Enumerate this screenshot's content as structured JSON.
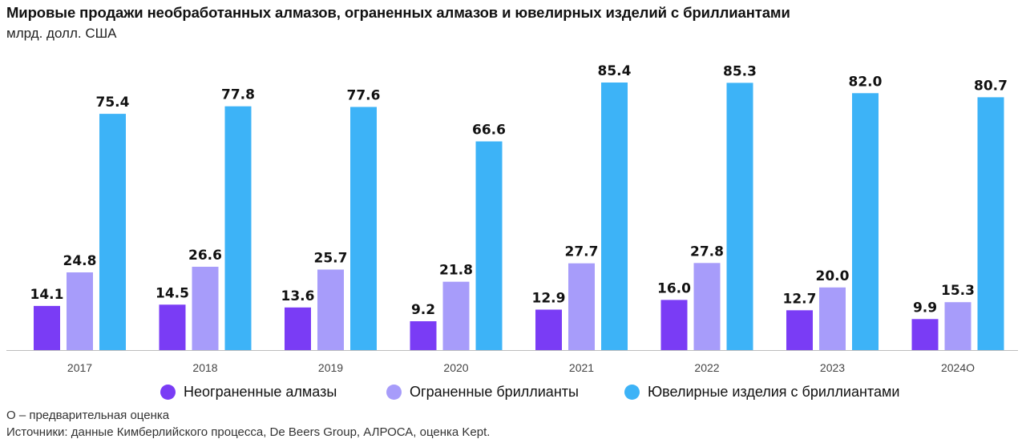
{
  "chart_data": {
    "type": "bar",
    "title": "Мировые продажи необработанных алмазов, ограненных алмазов и ювелирных изделий с бриллиантами",
    "subtitle": "млрд. долл. США",
    "categories": [
      "2017",
      "2018",
      "2019",
      "2020",
      "2021",
      "2022",
      "2023",
      "2024О"
    ],
    "series": [
      {
        "name": "Неограненные алмазы",
        "color": "#7a3cf5",
        "values": [
          14.1,
          14.5,
          13.6,
          9.2,
          12.9,
          16.0,
          12.7,
          9.9
        ]
      },
      {
        "name": "Ограненные бриллианты",
        "color": "#a79cfa",
        "values": [
          24.8,
          26.6,
          25.7,
          21.8,
          27.7,
          27.8,
          20.0,
          15.3
        ]
      },
      {
        "name": "Ювелирные изделия с бриллиантами",
        "color": "#3db3f7",
        "values": [
          75.4,
          77.8,
          77.6,
          66.6,
          85.4,
          85.3,
          82.0,
          80.7
        ]
      }
    ],
    "ylim": [
      0,
      88
    ],
    "grid": false,
    "legend_position": "bottom"
  },
  "footnote": "О – предварительная оценка",
  "source": "Источники: данные Кимберлийского процесса, De Beers Group, АЛРОСА, оценка Kept."
}
